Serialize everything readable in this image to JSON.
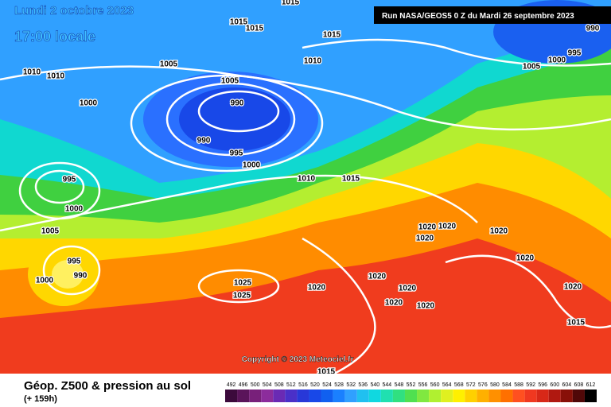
{
  "header": {
    "date": "Lundi 2 octobre 2023",
    "time": "17:00 locale",
    "run": "Run NASA/GEOS5 0 Z du Mardi 26 septembre 2023"
  },
  "copyright": "Copyright © 2023 Meteociel.fr",
  "caption": {
    "title": "Géop. Z500 & pression au sol",
    "lead": "(+ 159h)"
  },
  "isobar_labels": [
    "1015",
    "1015",
    "1015",
    "1015",
    "1010",
    "1010",
    "1005",
    "1010",
    "1005",
    "990",
    "1000",
    "990",
    "995",
    "1000",
    "995",
    "1010",
    "1015",
    "1000",
    "1005",
    "995",
    "990",
    "1000",
    "1025",
    "1025",
    "1020",
    "1020",
    "1020",
    "1020",
    "1020",
    "1020",
    "1020",
    "1020",
    "1020",
    "1020",
    "1020",
    "1015",
    "1015",
    "1005",
    "1000",
    "995",
    "990"
  ],
  "scale": {
    "values": [
      492,
      496,
      500,
      504,
      508,
      512,
      516,
      520,
      524,
      528,
      532,
      536,
      540,
      544,
      548,
      552,
      556,
      560,
      564,
      568,
      572,
      576,
      580,
      584,
      588,
      592,
      596,
      600,
      604,
      608,
      612
    ],
    "colors": [
      "#3c0a3c",
      "#5a145a",
      "#78207a",
      "#8c2c9c",
      "#6a2ab4",
      "#4a30c8",
      "#2838d8",
      "#1848e8",
      "#1060f0",
      "#1a80ff",
      "#30a0ff",
      "#20c0f0",
      "#10d8e0",
      "#20e0b0",
      "#30e080",
      "#50e050",
      "#80e840",
      "#b0f030",
      "#e0f020",
      "#fff000",
      "#ffd000",
      "#ffb000",
      "#ff9000",
      "#ff7000",
      "#ff5020",
      "#f03820",
      "#d82818",
      "#b01810",
      "#881008",
      "#500808",
      "#000000"
    ]
  }
}
